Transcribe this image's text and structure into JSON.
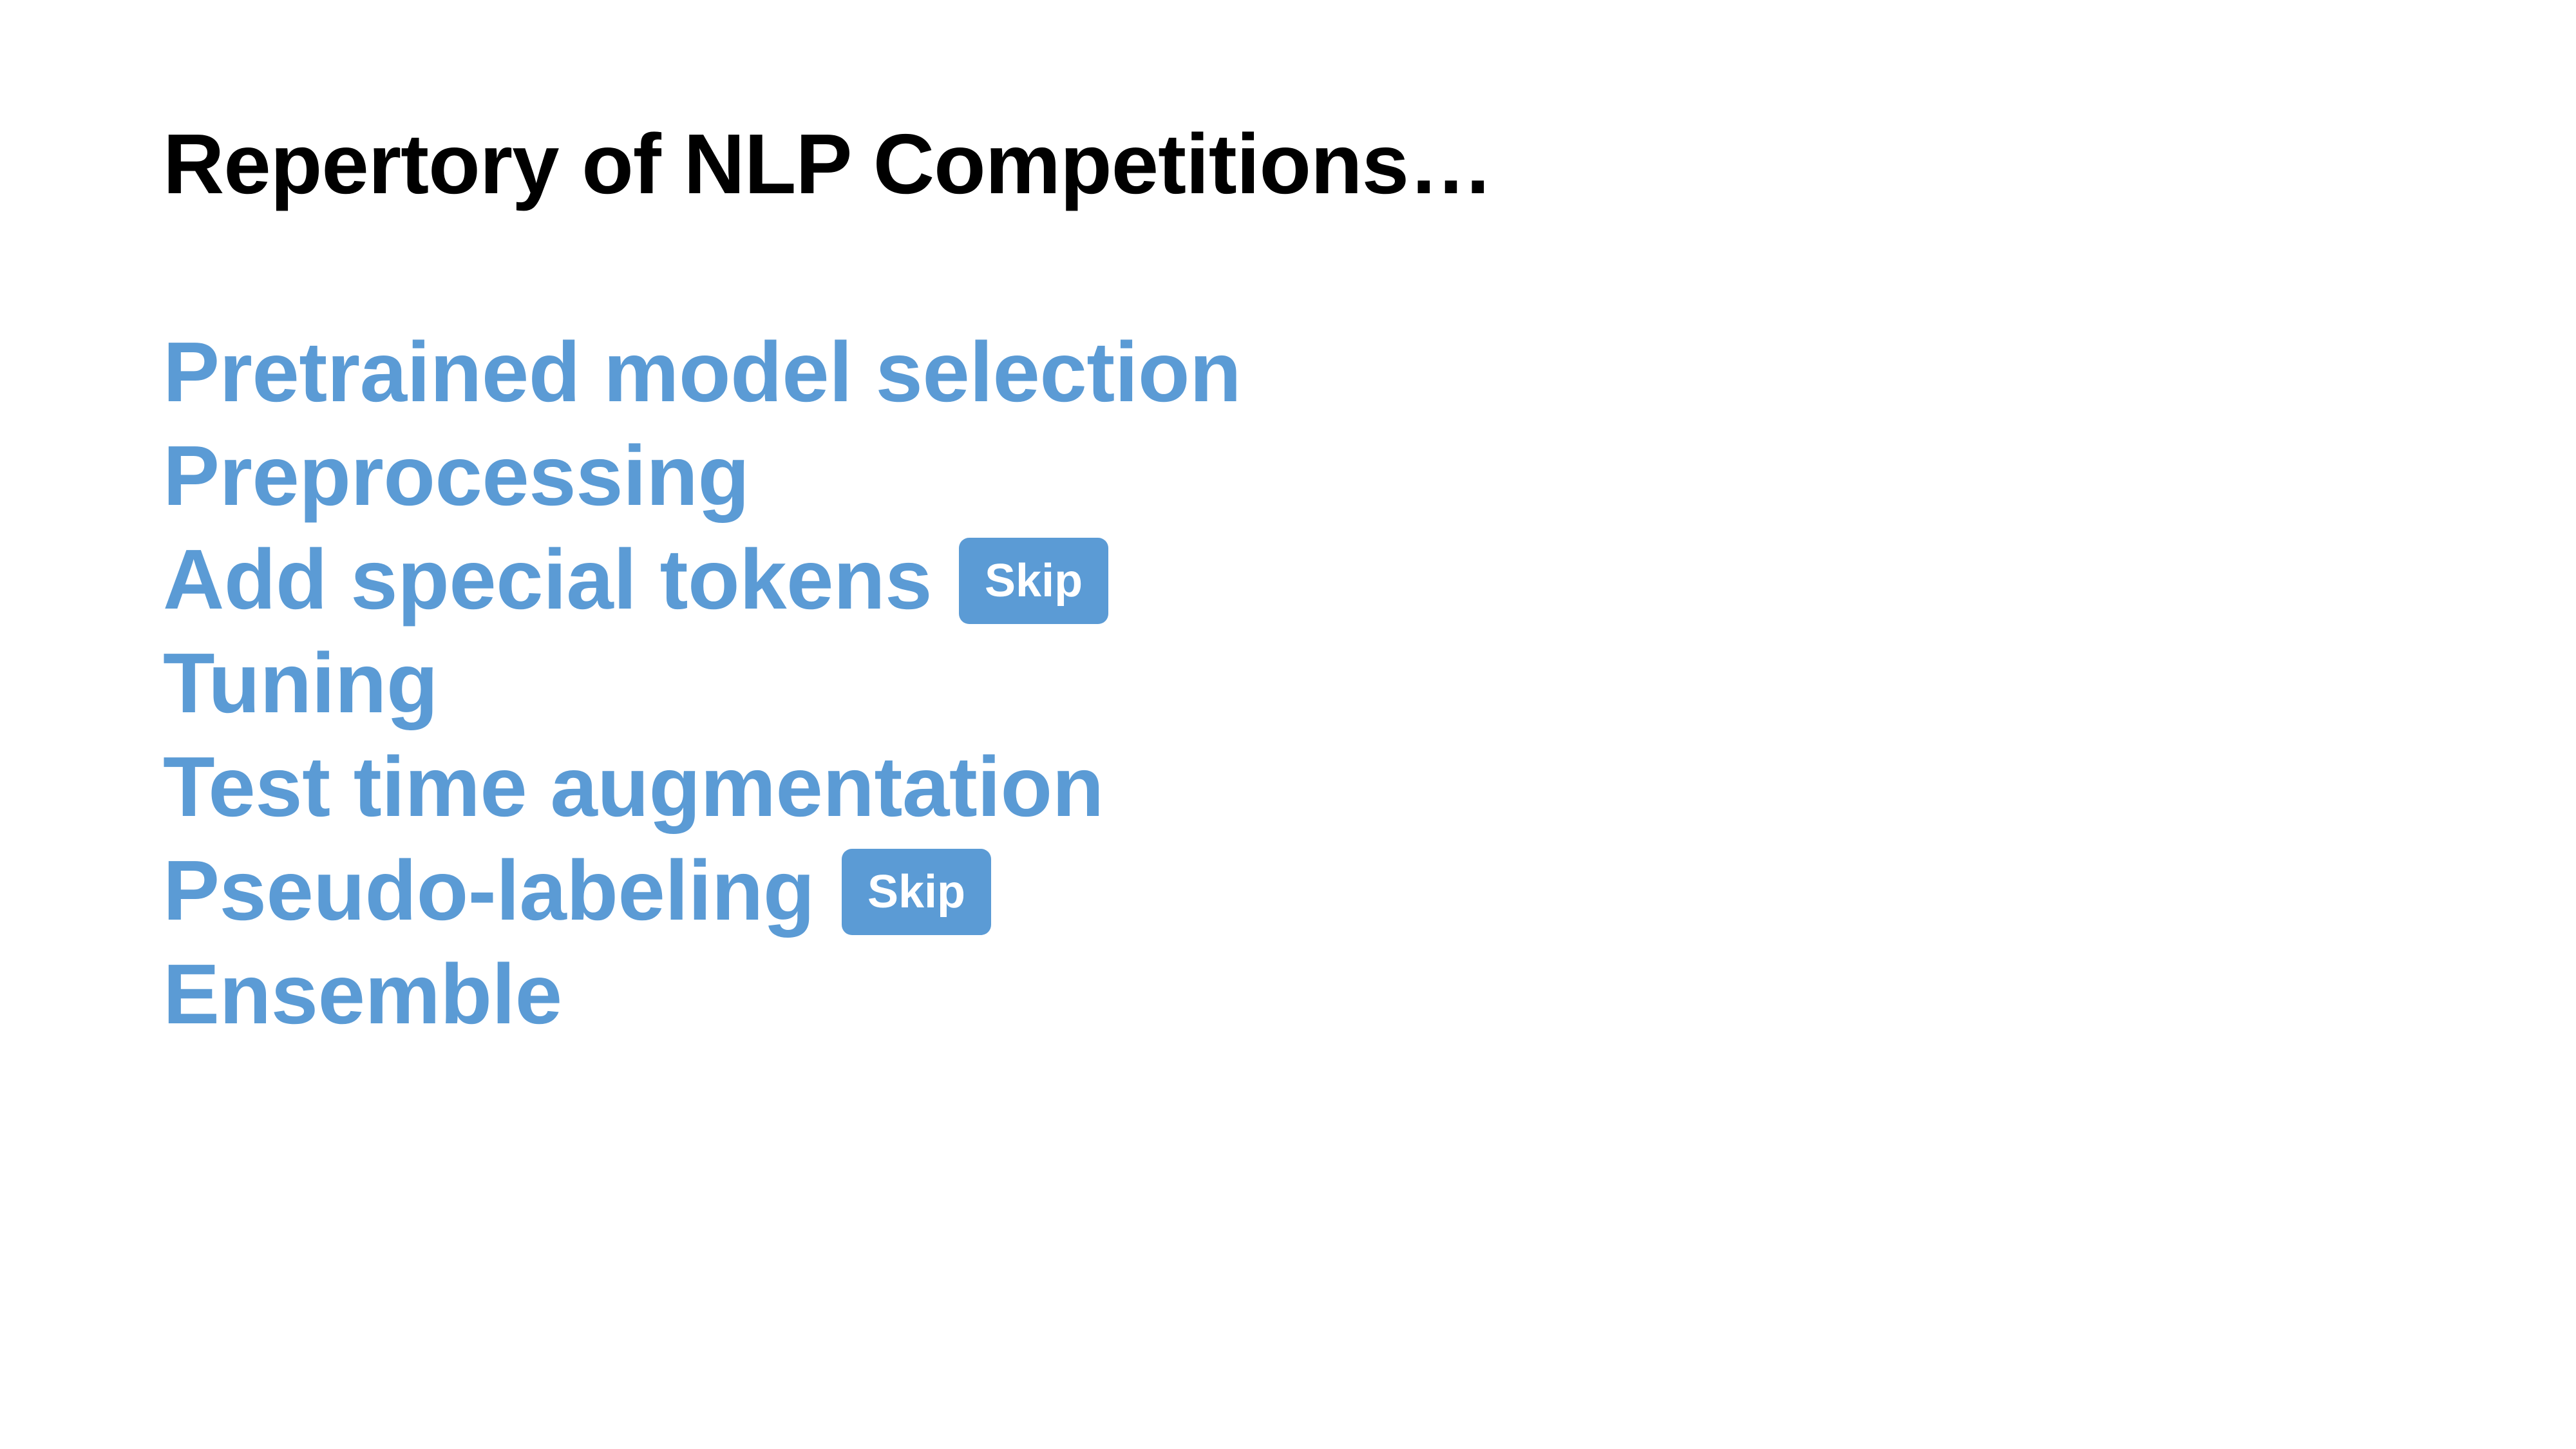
{
  "slide": {
    "title": "Repertory of NLP Competitions…",
    "items": [
      {
        "label": "Pretrained model selection",
        "badge": ""
      },
      {
        "label": "Preprocessing",
        "badge": ""
      },
      {
        "label": "Add special tokens",
        "badge": "Skip"
      },
      {
        "label": "Tuning",
        "badge": ""
      },
      {
        "label": "Test time augmentation",
        "badge": ""
      },
      {
        "label": "Pseudo-labeling",
        "badge": "Skip"
      },
      {
        "label": "Ensemble",
        "badge": ""
      }
    ]
  },
  "colors": {
    "accent": "#5b9bd5",
    "title": "#000000",
    "background": "#ffffff",
    "badge_text": "#ffffff"
  }
}
